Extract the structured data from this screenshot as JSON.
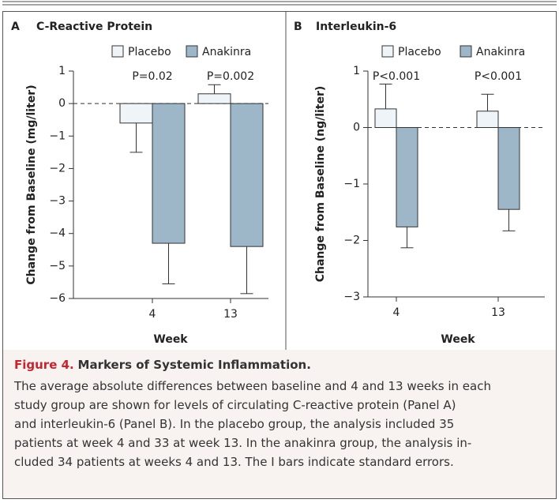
{
  "chart_data": [
    {
      "type": "bar",
      "panel": "A",
      "title": "C-Reactive Protein",
      "y_label": "Change from Baseline (mg/liter)",
      "x_label": "Week",
      "categories": [
        "4",
        "13"
      ],
      "annotations": [
        "P=0.02",
        "P=0.002"
      ],
      "series": [
        {
          "name": "Placebo",
          "color": "#eef4f7",
          "values": [
            -0.6,
            0.3
          ],
          "errors": [
            0.9,
            0.28
          ]
        },
        {
          "name": "Anakinra",
          "color": "#9db7c8",
          "values": [
            -4.3,
            -4.4
          ],
          "errors": [
            1.25,
            1.45
          ]
        }
      ],
      "ylim": [
        -6,
        1
      ],
      "yticks": [
        {
          "value": -6,
          "label": "−6"
        },
        {
          "value": -5,
          "label": "−5"
        },
        {
          "value": -4,
          "label": "−4"
        },
        {
          "value": -3,
          "label": "−3"
        },
        {
          "value": -2,
          "label": "−2"
        },
        {
          "value": -1,
          "label": "−1"
        },
        0,
        1
      ]
    },
    {
      "type": "bar",
      "panel": "B",
      "title": "Interleukin-6",
      "y_label": "Change from Baseline (ng/liter)",
      "x_label": "Week",
      "categories": [
        "4",
        "13"
      ],
      "annotations": [
        "P<0.001",
        "P<0.001"
      ],
      "series": [
        {
          "name": "Placebo",
          "color": "#eef4f7",
          "values": [
            0.33,
            0.29
          ],
          "errors": [
            0.44,
            0.3
          ]
        },
        {
          "name": "Anakinra",
          "color": "#9db7c8",
          "values": [
            -1.76,
            -1.45
          ],
          "errors": [
            0.37,
            0.38
          ]
        }
      ],
      "ylim": [
        -3,
        1
      ],
      "yticks": [
        {
          "value": -3,
          "label": "−3"
        },
        {
          "value": -2,
          "label": "−2"
        },
        {
          "value": -1,
          "label": "−1"
        },
        0,
        1
      ]
    }
  ],
  "caption": {
    "label": "Figure 4.",
    "title": "Markers of Systemic Inflammation.",
    "lines": [
      "The average absolute differences between baseline and 4 and 13 weeks in each",
      "study group are shown for levels of circulating C-reactive protein (Panel A)",
      "and interleukin-6 (Panel B). In the placebo group, the analysis included 35",
      "patients at week 4 and 33 at week 13. In the anakinra group, the analysis in-",
      "cluded 34 patients at weeks 4 and 13. The I bars indicate standard errors."
    ]
  }
}
